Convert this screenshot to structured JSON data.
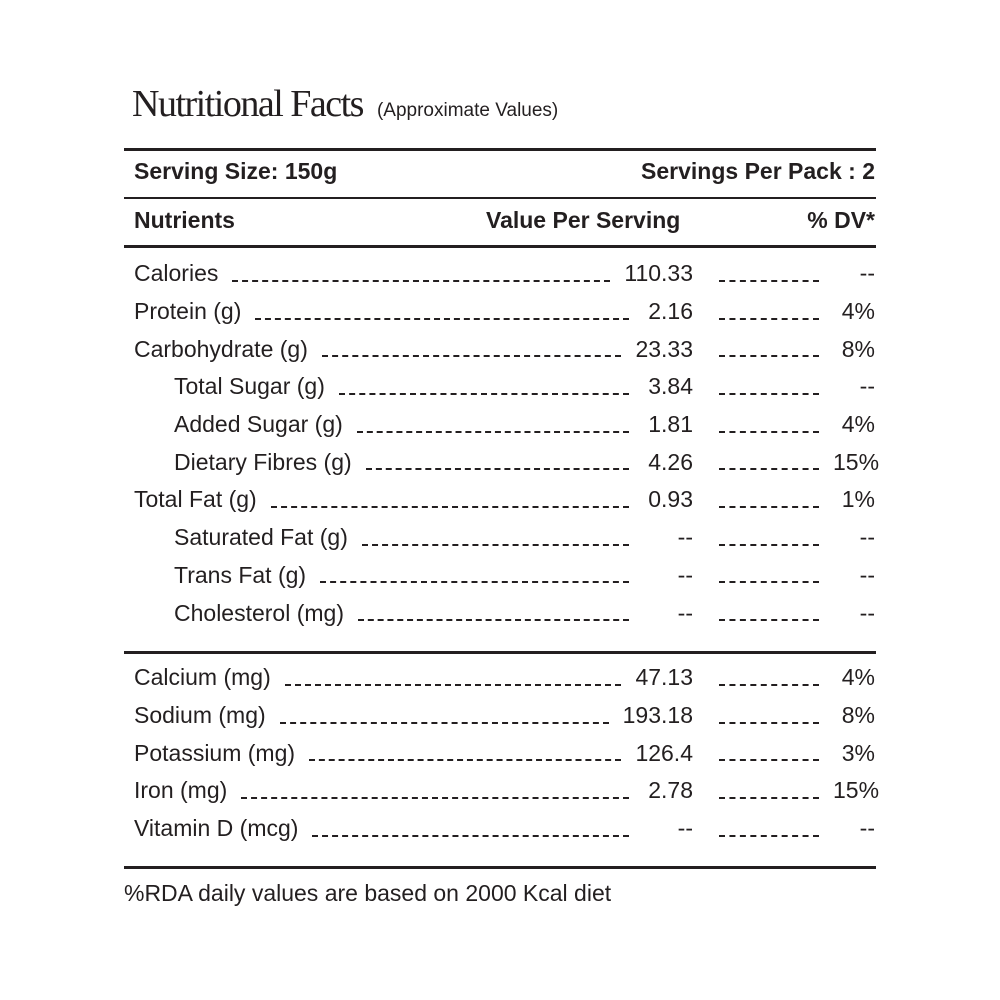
{
  "title": "Nutritional Facts",
  "subtitle": "(Approximate Values)",
  "serving_size": "Serving Size: 150g",
  "servings_per_pack": "Servings Per Pack : 2",
  "columns": {
    "nutrient": "Nutrients",
    "value": "Value Per Serving",
    "dv": "% DV*"
  },
  "group1": [
    {
      "name": "Calories",
      "value": "110.33",
      "dv": "--",
      "sub": false
    },
    {
      "name": "Protein (g)",
      "value": "2.16",
      "dv": "4%",
      "sub": false
    },
    {
      "name": "Carbohydrate (g)",
      "value": "23.33",
      "dv": "8%",
      "sub": false
    },
    {
      "name": "Total Sugar (g)",
      "value": "3.84",
      "dv": "--",
      "sub": true
    },
    {
      "name": "Added Sugar (g)",
      "value": "1.81",
      "dv": "4%",
      "sub": true
    },
    {
      "name": "Dietary Fibres (g)",
      "value": "4.26",
      "dv": "15%",
      "sub": true
    },
    {
      "name": "Total Fat (g)",
      "value": "0.93",
      "dv": "1%",
      "sub": false
    },
    {
      "name": "Saturated Fat (g)",
      "value": "--",
      "dv": "--",
      "sub": true
    },
    {
      "name": "Trans Fat (g)",
      "value": "--",
      "dv": "--",
      "sub": true
    },
    {
      "name": "Cholesterol (mg)",
      "value": "--",
      "dv": "--",
      "sub": true
    }
  ],
  "group2": [
    {
      "name": "Calcium (mg)",
      "value": "47.13",
      "dv": "4%",
      "sub": false
    },
    {
      "name": "Sodium (mg)",
      "value": "193.18",
      "dv": "8%",
      "sub": false
    },
    {
      "name": "Potassium (mg)",
      "value": "126.4",
      "dv": "3%",
      "sub": false
    },
    {
      "name": "Iron (mg)",
      "value": "2.78",
      "dv": "15%",
      "sub": false
    },
    {
      "name": "Vitamin D (mcg)",
      "value": "--",
      "dv": "--",
      "sub": false
    }
  ],
  "footer": "%RDA daily values are based on 2000 Kcal diet"
}
